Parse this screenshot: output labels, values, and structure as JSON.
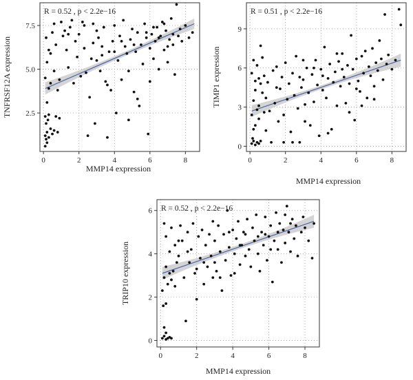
{
  "colors": {
    "point": "#111111",
    "line": "#4a64a8",
    "band": "#c9c9c9",
    "grid": "#9a9a9a",
    "frame": "#333333"
  },
  "chart_data": [
    {
      "id": "tnfrsf12a",
      "type": "scatter",
      "annotation": "R = 0.52 , p < 2.2e−16",
      "xlabel": "MMP14 expression",
      "ylabel": "TNFRSF12A expression",
      "xlim": [
        -0.2,
        8.8
      ],
      "ylim": [
        0.3,
        8.8
      ],
      "xticks": [
        0,
        2,
        4,
        6,
        8
      ],
      "yticks": [
        2.5,
        5.0,
        7.5
      ],
      "ytick_labels": [
        "2.5",
        "5.0",
        "7.5"
      ],
      "grid": true,
      "fit": {
        "x0": 0.1,
        "y0": 3.9,
        "x1": 8.5,
        "y1": 7.6,
        "band_low": 0.35,
        "band_mid": 0.12,
        "band_high": 0.3
      },
      "points": [
        [
          0.1,
          0.6
        ],
        [
          0.15,
          1.0
        ],
        [
          0.2,
          0.8
        ],
        [
          0.1,
          1.2
        ],
        [
          0.3,
          1.1
        ],
        [
          0.2,
          1.4
        ],
        [
          0.4,
          1.6
        ],
        [
          0.15,
          1.9
        ],
        [
          0.25,
          2.1
        ],
        [
          0.1,
          2.3
        ],
        [
          0.3,
          2.4
        ],
        [
          0.5,
          1.3
        ],
        [
          0.6,
          1.5
        ],
        [
          0.8,
          1.4
        ],
        [
          0.7,
          2.3
        ],
        [
          0.9,
          2.2
        ],
        [
          0.2,
          3.1
        ],
        [
          0.3,
          3.9
        ],
        [
          0.1,
          4.5
        ],
        [
          0.4,
          4.2
        ],
        [
          0.2,
          5.4
        ],
        [
          0.3,
          6.1
        ],
        [
          0.15,
          6.8
        ],
        [
          0.5,
          7.1
        ],
        [
          0.6,
          7.6
        ],
        [
          0.4,
          5.9
        ],
        [
          0.7,
          6.4
        ],
        [
          0.8,
          3.8
        ],
        [
          0.6,
          4.9
        ],
        [
          0.9,
          4.4
        ],
        [
          1.0,
          7.7
        ],
        [
          1.1,
          6.9
        ],
        [
          1.2,
          7.2
        ],
        [
          1.3,
          6.1
        ],
        [
          1.4,
          5.1
        ],
        [
          1.5,
          7.4
        ],
        [
          1.6,
          7.8
        ],
        [
          1.8,
          6.6
        ],
        [
          1.9,
          5.7
        ],
        [
          2.0,
          7.0
        ],
        [
          2.1,
          4.6
        ],
        [
          2.2,
          7.7
        ],
        [
          2.3,
          6.2
        ],
        [
          2.4,
          4.8
        ],
        [
          2.5,
          1.2
        ],
        [
          2.6,
          3.4
        ],
        [
          2.7,
          5.6
        ],
        [
          2.8,
          6.5
        ],
        [
          2.9,
          1.9
        ],
        [
          3.0,
          7.2
        ],
        [
          3.1,
          6.8
        ],
        [
          3.2,
          4.9
        ],
        [
          3.3,
          5.8
        ],
        [
          3.4,
          7.4
        ],
        [
          3.5,
          4.3
        ],
        [
          3.6,
          1.1
        ],
        [
          3.7,
          6.0
        ],
        [
          3.8,
          3.8
        ],
        [
          3.9,
          6.6
        ],
        [
          4.0,
          7.5
        ],
        [
          4.1,
          2.5
        ],
        [
          4.2,
          5.5
        ],
        [
          4.3,
          6.9
        ],
        [
          4.4,
          4.4
        ],
        [
          4.5,
          7.8
        ],
        [
          4.6,
          6.3
        ],
        [
          4.7,
          5.9
        ],
        [
          4.8,
          4.9
        ],
        [
          4.9,
          6.7
        ],
        [
          5.0,
          7.3
        ],
        [
          5.1,
          3.7
        ],
        [
          5.2,
          6.0
        ],
        [
          5.3,
          7.1
        ],
        [
          5.4,
          2.9
        ],
        [
          5.5,
          6.4
        ],
        [
          5.6,
          5.3
        ],
        [
          5.7,
          7.6
        ],
        [
          5.8,
          6.8
        ],
        [
          5.9,
          1.3
        ],
        [
          6.0,
          6.2
        ],
        [
          6.1,
          7.0
        ],
        [
          6.2,
          5.6
        ],
        [
          6.3,
          6.6
        ],
        [
          6.4,
          7.4
        ],
        [
          6.5,
          5.0
        ],
        [
          6.6,
          6.9
        ],
        [
          6.7,
          7.7
        ],
        [
          6.8,
          6.1
        ],
        [
          6.9,
          7.2
        ],
        [
          7.0,
          5.4
        ],
        [
          7.1,
          6.7
        ],
        [
          7.2,
          7.9
        ],
        [
          7.3,
          6.4
        ],
        [
          7.4,
          4.7
        ],
        [
          7.5,
          8.7
        ],
        [
          7.6,
          6.9
        ],
        [
          7.7,
          7.3
        ],
        [
          7.8,
          6.6
        ],
        [
          8.0,
          7.5
        ],
        [
          8.2,
          6.8
        ],
        [
          8.4,
          7.1
        ],
        [
          6.0,
          4.3
        ],
        [
          5.3,
          3.3
        ],
        [
          4.8,
          2.1
        ],
        [
          3.6,
          4.1
        ],
        [
          2.3,
          7.5
        ],
        [
          1.7,
          4.2
        ],
        [
          6.5,
          6.8
        ],
        [
          5.8,
          7.1
        ],
        [
          7.0,
          6.3
        ],
        [
          4.4,
          6.6
        ],
        [
          3.3,
          6.3
        ],
        [
          2.8,
          7.6
        ],
        [
          1.4,
          7.0
        ],
        [
          6.8,
          7.6
        ],
        [
          7.3,
          7.0
        ],
        [
          5.1,
          6.4
        ],
        [
          4.0,
          6.0
        ],
        [
          3.0,
          5.5
        ],
        [
          6.2,
          7.4
        ]
      ]
    },
    {
      "id": "timp1",
      "type": "scatter",
      "annotation": "R = 0.51 , p < 2.2e−16",
      "xlabel": "MMP14 expression",
      "ylabel": "TIMP1 expression",
      "xlim": [
        -0.2,
        8.8
      ],
      "ylim": [
        -0.4,
        11.0
      ],
      "xticks": [
        0,
        2,
        4,
        6,
        8
      ],
      "yticks": [
        0,
        3,
        6,
        9
      ],
      "ytick_labels": [
        "0",
        "3",
        "6",
        "9"
      ],
      "grid": true,
      "fit": {
        "x0": 0.1,
        "y0": 2.7,
        "x1": 8.5,
        "y1": 6.6,
        "band_low": 0.45,
        "band_mid": 0.15,
        "band_high": 0.5
      },
      "points": [
        [
          0.1,
          0.2
        ],
        [
          0.2,
          0.4
        ],
        [
          0.3,
          0.1
        ],
        [
          0.4,
          0.3
        ],
        [
          0.15,
          0.6
        ],
        [
          0.5,
          0.2
        ],
        [
          0.6,
          0.4
        ],
        [
          0.2,
          1.3
        ],
        [
          0.3,
          1.6
        ],
        [
          0.1,
          2.4
        ],
        [
          0.4,
          2.8
        ],
        [
          0.2,
          3.5
        ],
        [
          0.5,
          3.1
        ],
        [
          0.3,
          4.3
        ],
        [
          0.6,
          4.8
        ],
        [
          0.1,
          5.6
        ],
        [
          0.4,
          6.2
        ],
        [
          0.2,
          6.6
        ],
        [
          0.5,
          5.2
        ],
        [
          0.7,
          4.1
        ],
        [
          0.8,
          2.6
        ],
        [
          0.9,
          3.7
        ],
        [
          0.6,
          7.7
        ],
        [
          0.7,
          6.8
        ],
        [
          0.8,
          5.4
        ],
        [
          0.9,
          1.2
        ],
        [
          0.5,
          2.1
        ],
        [
          0.3,
          5.0
        ],
        [
          1.0,
          4.9
        ],
        [
          1.1,
          2.7
        ],
        [
          1.2,
          0.3
        ],
        [
          1.3,
          5.8
        ],
        [
          1.4,
          3.3
        ],
        [
          1.5,
          6.1
        ],
        [
          1.6,
          1.9
        ],
        [
          1.7,
          4.4
        ],
        [
          1.8,
          5.3
        ],
        [
          1.9,
          2.4
        ],
        [
          2.0,
          6.4
        ],
        [
          2.1,
          3.6
        ],
        [
          2.2,
          4.8
        ],
        [
          2.3,
          1.1
        ],
        [
          2.4,
          5.6
        ],
        [
          2.5,
          3.9
        ],
        [
          2.6,
          6.9
        ],
        [
          2.7,
          2.9
        ],
        [
          2.8,
          0.3
        ],
        [
          2.9,
          4.5
        ],
        [
          3.0,
          5.1
        ],
        [
          3.1,
          3.2
        ],
        [
          3.2,
          6.0
        ],
        [
          3.3,
          4.1
        ],
        [
          3.4,
          1.6
        ],
        [
          3.5,
          5.5
        ],
        [
          3.6,
          3.4
        ],
        [
          3.7,
          6.6
        ],
        [
          3.8,
          4.7
        ],
        [
          3.9,
          0.8
        ],
        [
          4.0,
          5.9
        ],
        [
          4.1,
          4.3
        ],
        [
          4.2,
          7.6
        ],
        [
          4.3,
          3.7
        ],
        [
          4.4,
          5.2
        ],
        [
          4.5,
          6.3
        ],
        [
          4.6,
          1.3
        ],
        [
          4.7,
          4.9
        ],
        [
          4.8,
          5.7
        ],
        [
          4.9,
          3.1
        ],
        [
          5.0,
          6.5
        ],
        [
          5.1,
          4.6
        ],
        [
          5.2,
          7.1
        ],
        [
          5.3,
          5.3
        ],
        [
          5.4,
          3.3
        ],
        [
          5.5,
          6.2
        ],
        [
          5.6,
          4.8
        ],
        [
          5.7,
          8.5
        ],
        [
          5.8,
          5.9
        ],
        [
          5.9,
          2.0
        ],
        [
          6.0,
          6.7
        ],
        [
          6.1,
          5.0
        ],
        [
          6.2,
          4.2
        ],
        [
          6.3,
          6.9
        ],
        [
          6.4,
          5.6
        ],
        [
          6.5,
          7.3
        ],
        [
          6.6,
          3.7
        ],
        [
          6.7,
          6.1
        ],
        [
          6.8,
          5.4
        ],
        [
          6.9,
          7.5
        ],
        [
          7.0,
          4.6
        ],
        [
          7.1,
          6.4
        ],
        [
          7.2,
          5.8
        ],
        [
          7.3,
          8.1
        ],
        [
          7.4,
          6.7
        ],
        [
          7.5,
          5.1
        ],
        [
          7.6,
          10.1
        ],
        [
          7.7,
          6.3
        ],
        [
          7.8,
          7.0
        ],
        [
          8.0,
          5.9
        ],
        [
          8.2,
          6.6
        ],
        [
          8.4,
          10.5
        ],
        [
          8.5,
          9.3
        ],
        [
          4.4,
          1.0
        ],
        [
          3.1,
          1.9
        ],
        [
          5.6,
          2.6
        ],
        [
          2.4,
          0.3
        ],
        [
          1.9,
          0.3
        ],
        [
          6.3,
          3.1
        ],
        [
          4.9,
          7.1
        ],
        [
          3.6,
          6.0
        ],
        [
          2.8,
          5.3
        ],
        [
          1.5,
          4.5
        ],
        [
          7.0,
          3.6
        ],
        [
          6.0,
          4.4
        ],
        [
          5.2,
          5.9
        ],
        [
          4.1,
          5.4
        ],
        [
          3.0,
          6.6
        ]
      ]
    },
    {
      "id": "trip10",
      "type": "scatter",
      "annotation": "R = 0.52 , p < 2.2e−16",
      "xlabel": "MMP14 expression",
      "ylabel": "TRIP10 expression",
      "xlim": [
        -0.2,
        8.8
      ],
      "ylim": [
        -0.3,
        6.5
      ],
      "xticks": [
        0,
        2,
        4,
        6,
        8
      ],
      "yticks": [
        0,
        2,
        4,
        6
      ],
      "ytick_labels": [
        "0",
        "2",
        "4",
        "6"
      ],
      "grid": true,
      "fit": {
        "x0": 0.1,
        "y0": 3.1,
        "x1": 8.5,
        "y1": 5.5,
        "band_low": 0.3,
        "band_mid": 0.1,
        "band_high": 0.3
      },
      "points": [
        [
          0.1,
          0.1
        ],
        [
          0.2,
          0.2
        ],
        [
          0.3,
          0.05
        ],
        [
          0.4,
          0.1
        ],
        [
          0.5,
          0.15
        ],
        [
          0.6,
          0.1
        ],
        [
          0.2,
          0.6
        ],
        [
          0.3,
          0.35
        ],
        [
          0.15,
          1.6
        ],
        [
          0.3,
          1.7
        ],
        [
          0.1,
          2.3
        ],
        [
          0.4,
          2.6
        ],
        [
          0.2,
          2.9
        ],
        [
          0.5,
          3.1
        ],
        [
          0.3,
          3.4
        ],
        [
          0.6,
          2.8
        ],
        [
          0.7,
          3.2
        ],
        [
          0.8,
          2.5
        ],
        [
          0.9,
          3.6
        ],
        [
          0.5,
          4.1
        ],
        [
          0.3,
          4.8
        ],
        [
          0.6,
          5.2
        ],
        [
          0.2,
          5.4
        ],
        [
          0.8,
          4.4
        ],
        [
          1.0,
          3.9
        ],
        [
          1.1,
          5.3
        ],
        [
          1.2,
          4.6
        ],
        [
          1.3,
          2.9
        ],
        [
          1.4,
          0.9
        ],
        [
          1.5,
          5.0
        ],
        [
          1.6,
          3.6
        ],
        [
          1.7,
          4.2
        ],
        [
          1.8,
          5.4
        ],
        [
          1.9,
          3.1
        ],
        [
          2.0,
          1.9
        ],
        [
          2.1,
          4.8
        ],
        [
          2.2,
          3.8
        ],
        [
          2.3,
          5.1
        ],
        [
          2.4,
          2.6
        ],
        [
          2.5,
          4.4
        ],
        [
          2.6,
          3.4
        ],
        [
          2.7,
          4.9
        ],
        [
          2.8,
          3.9
        ],
        [
          2.9,
          2.9
        ],
        [
          3.0,
          4.6
        ],
        [
          3.1,
          3.2
        ],
        [
          3.2,
          5.3
        ],
        [
          3.3,
          4.1
        ],
        [
          3.4,
          2.3
        ],
        [
          3.5,
          4.9
        ],
        [
          3.6,
          3.7
        ],
        [
          3.7,
          6.0
        ],
        [
          3.8,
          4.3
        ],
        [
          3.9,
          3.0
        ],
        [
          4.0,
          5.1
        ],
        [
          4.1,
          4.0
        ],
        [
          4.2,
          4.7
        ],
        [
          4.3,
          5.5
        ],
        [
          4.4,
          3.5
        ],
        [
          4.5,
          4.4
        ],
        [
          4.6,
          5.0
        ],
        [
          4.7,
          3.9
        ],
        [
          4.8,
          5.6
        ],
        [
          4.9,
          4.2
        ],
        [
          5.0,
          3.4
        ],
        [
          5.1,
          5.2
        ],
        [
          5.2,
          4.6
        ],
        [
          5.3,
          5.8
        ],
        [
          5.4,
          4.0
        ],
        [
          5.5,
          3.2
        ],
        [
          5.6,
          5.0
        ],
        [
          5.7,
          4.4
        ],
        [
          5.8,
          5.7
        ],
        [
          5.9,
          3.7
        ],
        [
          6.0,
          4.8
        ],
        [
          6.1,
          5.3
        ],
        [
          6.2,
          2.7
        ],
        [
          6.3,
          4.6
        ],
        [
          6.4,
          5.9
        ],
        [
          6.5,
          4.2
        ],
        [
          6.6,
          5.4
        ],
        [
          6.7,
          3.6
        ],
        [
          6.8,
          5.1
        ],
        [
          6.9,
          4.5
        ],
        [
          7.0,
          6.2
        ],
        [
          7.1,
          5.0
        ],
        [
          7.2,
          4.1
        ],
        [
          7.3,
          5.6
        ],
        [
          7.4,
          4.7
        ],
        [
          7.5,
          5.3
        ],
        [
          7.6,
          3.9
        ],
        [
          7.8,
          5.0
        ],
        [
          8.0,
          5.2
        ],
        [
          8.2,
          4.6
        ],
        [
          8.4,
          3.8
        ],
        [
          8.5,
          5.4
        ],
        [
          2.4,
          3.6
        ],
        [
          3.3,
          2.9
        ],
        [
          4.1,
          3.1
        ],
        [
          5.4,
          4.8
        ],
        [
          6.1,
          4.2
        ],
        [
          2.9,
          5.5
        ],
        [
          1.5,
          4.1
        ],
        [
          3.8,
          5.0
        ],
        [
          4.7,
          4.9
        ],
        [
          6.5,
          5.0
        ],
        [
          7.2,
          5.4
        ],
        [
          1.0,
          4.6
        ],
        [
          2.0,
          3.3
        ],
        [
          5.8,
          4.9
        ],
        [
          3.0,
          3.6
        ],
        [
          4.4,
          4.4
        ],
        [
          6.9,
          5.8
        ],
        [
          7.9,
          5.7
        ]
      ]
    }
  ]
}
